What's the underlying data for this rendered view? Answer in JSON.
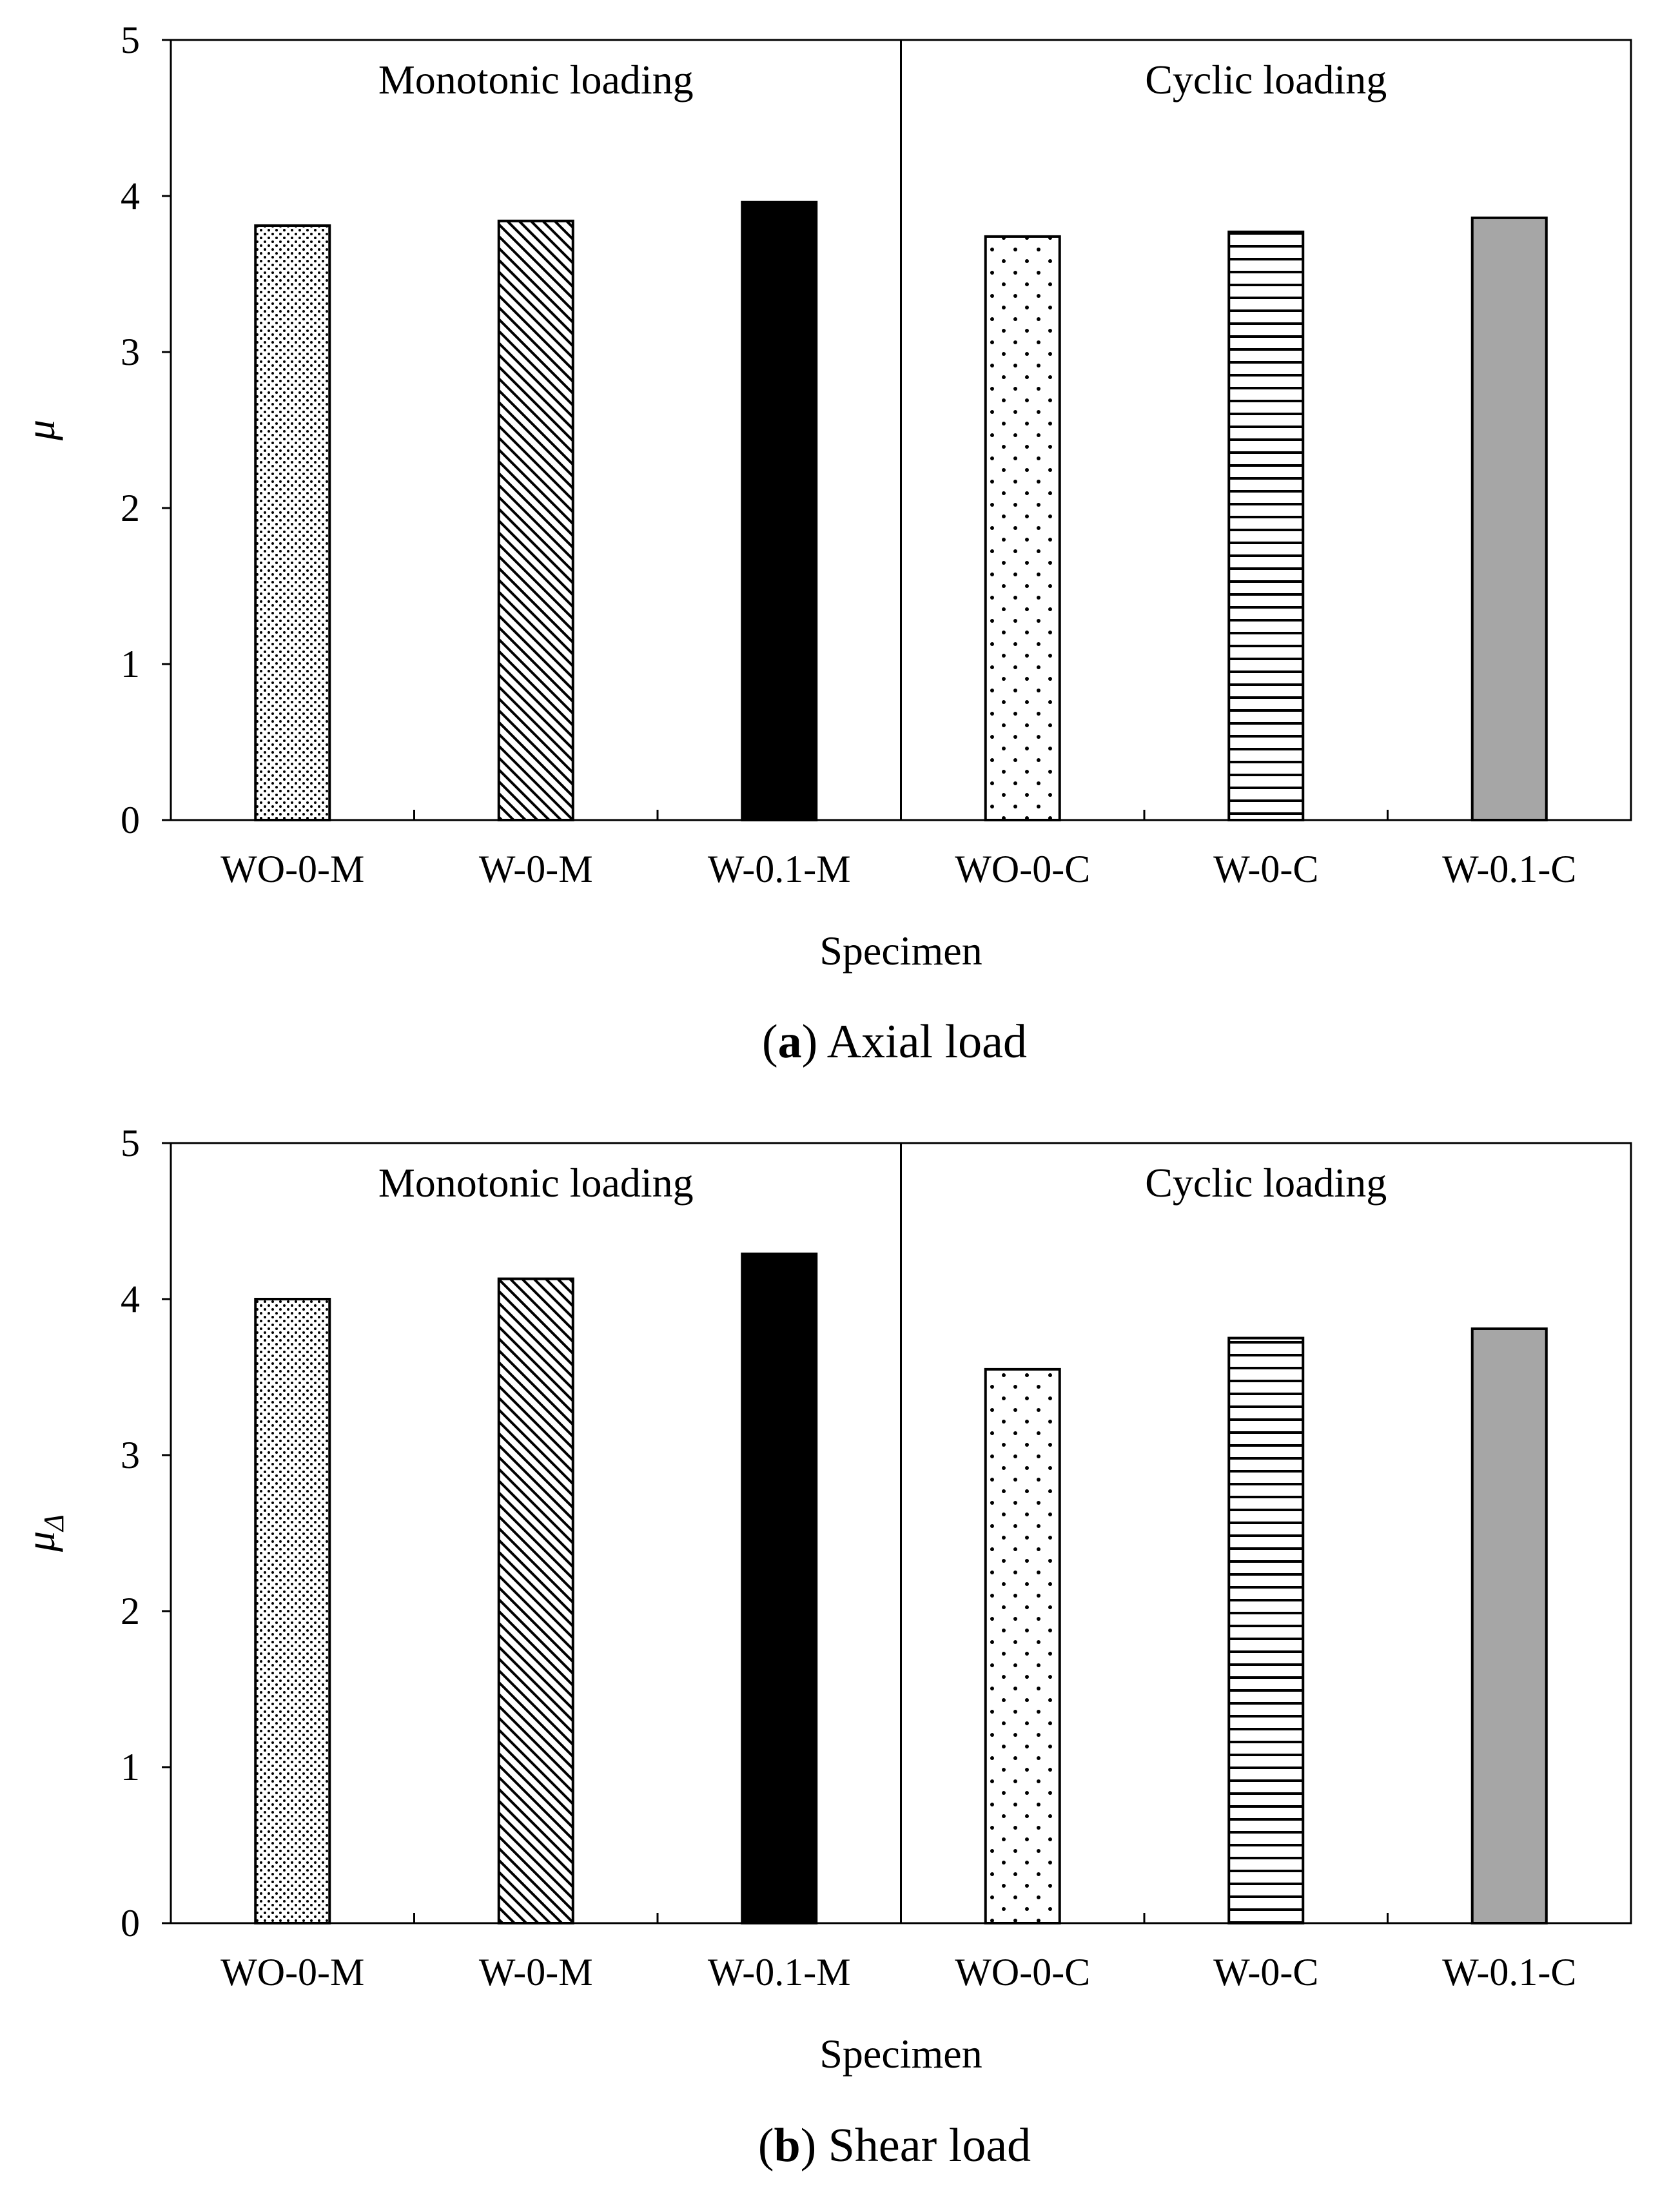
{
  "chart_data": [
    {
      "type": "bar",
      "panel": "a",
      "caption_letter": "a",
      "caption_text": "Axial load",
      "ylabel": "μ",
      "ylabel_sub": "",
      "xlabel": "Specimen",
      "ylim": [
        0,
        5
      ],
      "yticks": [
        "0",
        "1",
        "2",
        "3",
        "4",
        "5"
      ],
      "categories": [
        "WO-0-M",
        "W-0-M",
        "W-0.1-M",
        "WO-0-C",
        "W-0-C",
        "W-0.1-C"
      ],
      "values": [
        3.81,
        3.84,
        3.96,
        3.74,
        3.77,
        3.86
      ],
      "patterns": [
        "dense-dots",
        "diagonal",
        "solid-black",
        "sparse-dots",
        "horizontal",
        "solid-gray"
      ],
      "groups": [
        {
          "label": "Monotonic loading"
        },
        {
          "label": "Cyclic loading"
        }
      ]
    },
    {
      "type": "bar",
      "panel": "b",
      "caption_letter": "b",
      "caption_text": "Shear load",
      "ylabel": "μ",
      "ylabel_sub": "Δ",
      "xlabel": "Specimen",
      "ylim": [
        0,
        5
      ],
      "yticks": [
        "0",
        "1",
        "2",
        "3",
        "4",
        "5"
      ],
      "categories": [
        "WO-0-M",
        "W-0-M",
        "W-0.1-M",
        "WO-0-C",
        "W-0-C",
        "W-0.1-C"
      ],
      "values": [
        4.0,
        4.13,
        4.29,
        3.55,
        3.75,
        3.81
      ],
      "patterns": [
        "dense-dots",
        "diagonal",
        "solid-black",
        "sparse-dots",
        "horizontal",
        "solid-gray"
      ],
      "groups": [
        {
          "label": "Monotonic loading"
        },
        {
          "label": "Cyclic loading"
        }
      ]
    }
  ],
  "colors": {
    "black": "#000000",
    "gray": "#a6a6a6",
    "background": "#ffffff"
  }
}
